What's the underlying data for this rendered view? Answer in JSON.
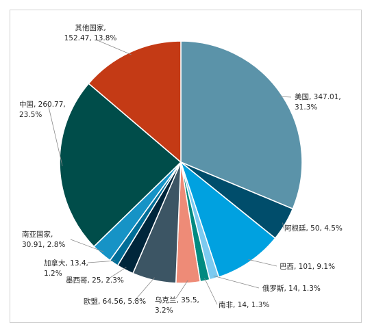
{
  "chart_data": {
    "type": "pie",
    "title": "",
    "slices": [
      {
        "name": "美国",
        "value": 347.01,
        "percent": "31.3%",
        "color": "#5b93a9"
      },
      {
        "name": "阿根廷",
        "value": 50,
        "percent": "4.5%",
        "color": "#004d6b"
      },
      {
        "name": "巴西",
        "value": 101,
        "percent": "9.1%",
        "color": "#00a1e0"
      },
      {
        "name": "俄罗斯",
        "value": 14,
        "percent": "1.3%",
        "color": "#7ccaf0"
      },
      {
        "name": "南非",
        "value": 14,
        "percent": "1.3%",
        "color": "#008a80"
      },
      {
        "name": "乌克兰",
        "value": 35.5,
        "percent": "3.2%",
        "color": "#ee8b77"
      },
      {
        "name": "欧盟",
        "value": 64.56,
        "percent": "5.8%",
        "color": "#3c5564"
      },
      {
        "name": "墨西哥",
        "value": 25,
        "percent": "2.3%",
        "color": "#00263b"
      },
      {
        "name": "加拿大",
        "value": 13.4,
        "percent": "1.2%",
        "color": "#006e98"
      },
      {
        "name": "南亚国家",
        "value": 30.91,
        "percent": "2.8%",
        "color": "#1693c6"
      },
      {
        "name": "中国",
        "value": 260.77,
        "percent": "23.5%",
        "color": "#004d4a"
      },
      {
        "name": "其他国家",
        "value": 152.47,
        "percent": "13.8%",
        "color": "#c43a15"
      }
    ],
    "labels": [
      [
        "美国, 347.01,",
        "31.3%"
      ],
      [
        "阿根廷, 50, 4.5%"
      ],
      [
        "巴西, 101, 9.1%"
      ],
      [
        "俄罗斯, 14, 1.3%"
      ],
      [
        "南非, 14, 1.3%"
      ],
      [
        "乌克兰, 35.5,",
        "3.2%"
      ],
      [
        "欧盟, 64.56, 5.8%"
      ],
      [
        "墨西哥, 25, 2.3%"
      ],
      [
        "加拿大, 13.4,",
        "1.2%"
      ],
      [
        "南亚国家,",
        "30.91, 2.8%"
      ],
      [
        "中国, 260.77,",
        "23.5%"
      ],
      [
        "其他国家,",
        "152.47, 13.8%"
      ]
    ],
    "start_angle": "12 o'clock",
    "direction": "clockwise",
    "legend": "none"
  }
}
